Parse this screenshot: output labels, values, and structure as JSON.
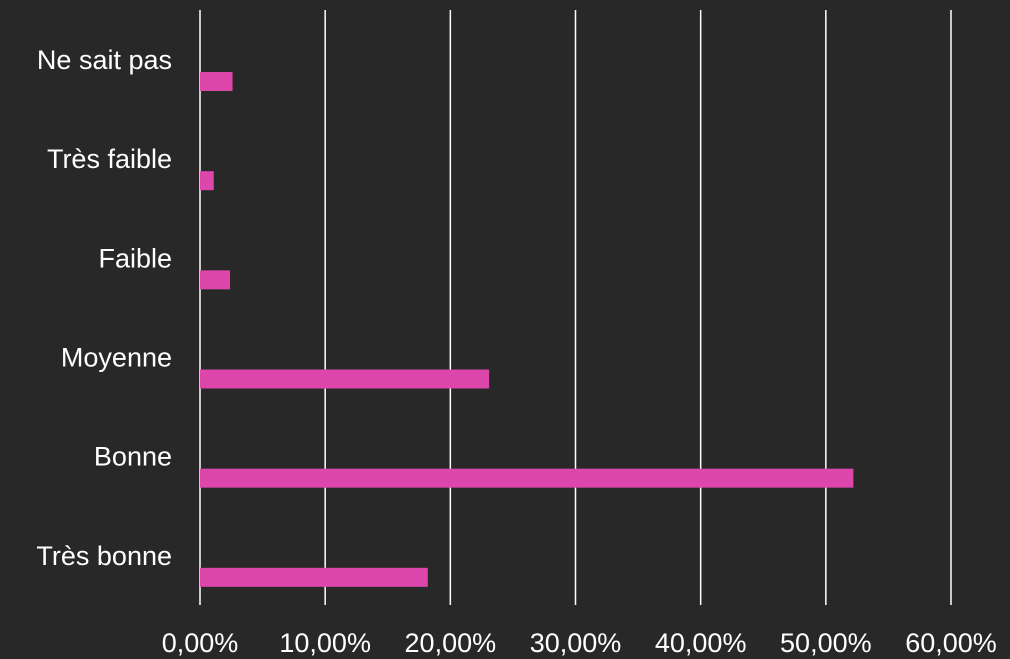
{
  "chart_data": {
    "type": "bar",
    "orientation": "horizontal",
    "categories": [
      "Ne sait pas",
      "Très faible",
      "Faible",
      "Moyenne",
      "Bonne",
      "Très bonne"
    ],
    "values": [
      2.6,
      1.1,
      2.4,
      23.1,
      52.2,
      18.2
    ],
    "value_unit": "%",
    "xlim": [
      0,
      60
    ],
    "x_ticks": [
      0,
      10,
      20,
      30,
      40,
      50,
      60
    ],
    "x_tick_labels": [
      "0,00%",
      "10,00%",
      "20,00%",
      "30,00%",
      "40,00%",
      "50,00%",
      "60,00%"
    ],
    "grid": "vertical",
    "title": "",
    "xlabel": "",
    "ylabel": ""
  },
  "colors": {
    "background": "#282828",
    "bar": "#dd46aa",
    "grid": "#ffffff",
    "text": "#ffffff"
  }
}
